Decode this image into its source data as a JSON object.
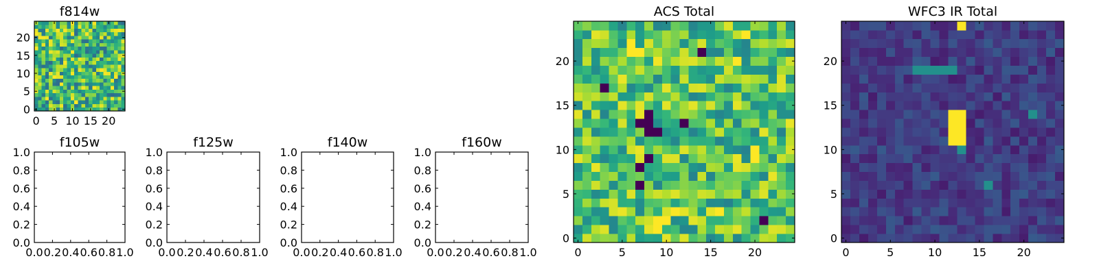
{
  "chart_data": [
    {
      "type": "heatmap",
      "title": "f814w",
      "colormap": "viridis",
      "grid_size": [
        25,
        25
      ],
      "xlim": [
        -0.5,
        24.5
      ],
      "ylim": [
        -0.5,
        24.5
      ],
      "xticks": [
        "0",
        "5",
        "10",
        "15",
        "20"
      ],
      "yticks": [
        "0",
        "5",
        "10",
        "15",
        "20"
      ],
      "value_range": [
        0,
        1
      ],
      "pattern": "noise",
      "noise": [
        0.35,
        1.0
      ],
      "seed": 11,
      "rows": []
    },
    {
      "type": "heatmap",
      "title": "f105w",
      "empty": true,
      "xlim": [
        0,
        1
      ],
      "ylim": [
        0,
        1
      ],
      "xticks": [
        "0.0",
        "0.2",
        "0.4",
        "0.6",
        "0.8",
        "1.0"
      ],
      "yticks": [
        "0.0",
        "0.2",
        "0.4",
        "0.6",
        "0.8",
        "1.0"
      ]
    },
    {
      "type": "heatmap",
      "title": "f125w",
      "empty": true,
      "xlim": [
        0,
        1
      ],
      "ylim": [
        0,
        1
      ],
      "xticks": [
        "0.0",
        "0.2",
        "0.4",
        "0.6",
        "0.8",
        "1.0"
      ],
      "yticks": [
        "0.0",
        "0.2",
        "0.4",
        "0.6",
        "0.8",
        "1.0"
      ]
    },
    {
      "type": "heatmap",
      "title": "f140w",
      "empty": true,
      "xlim": [
        0,
        1
      ],
      "ylim": [
        0,
        1
      ],
      "xticks": [
        "0.0",
        "0.2",
        "0.4",
        "0.6",
        "0.8",
        "1.0"
      ],
      "yticks": [
        "0.0",
        "0.2",
        "0.4",
        "0.6",
        "0.8",
        "1.0"
      ]
    },
    {
      "type": "heatmap",
      "title": "f160w",
      "empty": true,
      "xlim": [
        0,
        1
      ],
      "ylim": [
        0,
        1
      ],
      "xticks": [
        "0.0",
        "0.2",
        "0.4",
        "0.6",
        "0.8",
        "1.0"
      ],
      "yticks": [
        "0.0",
        "0.2",
        "0.4",
        "0.6",
        "0.8",
        "1.0"
      ]
    },
    {
      "type": "heatmap",
      "title": "ACS Total",
      "colormap": "viridis",
      "grid_size": [
        25,
        25
      ],
      "xlim": [
        -0.5,
        24.5
      ],
      "ylim": [
        -0.5,
        24.5
      ],
      "xticks": [
        "0",
        "5",
        "10",
        "15",
        "20"
      ],
      "yticks": [
        "0",
        "5",
        "10",
        "15",
        "20"
      ],
      "value_range": [
        0,
        1
      ],
      "pattern": "noise",
      "noise": [
        0.45,
        0.98
      ],
      "seed": 29,
      "rows": [],
      "low_spots": [
        [
          8,
          9
        ],
        [
          8,
          12
        ],
        [
          7,
          13
        ],
        [
          8,
          13
        ],
        [
          9,
          12
        ],
        [
          12,
          13
        ],
        [
          14,
          21
        ],
        [
          7,
          6
        ],
        [
          7,
          8
        ],
        [
          3,
          17
        ],
        [
          21,
          2
        ],
        [
          8,
          14
        ]
      ],
      "high_spots": [
        [
          6,
          21
        ],
        [
          6,
          22
        ],
        [
          7,
          21
        ],
        [
          20,
          10
        ],
        [
          20,
          9
        ],
        [
          11,
          3
        ],
        [
          9,
          1
        ],
        [
          9,
          2
        ],
        [
          10,
          2
        ],
        [
          19,
          23
        ],
        [
          18,
          20
        ],
        [
          16,
          3
        ]
      ]
    },
    {
      "type": "heatmap",
      "title": "WFC3 IR Total",
      "colormap": "viridis",
      "grid_size": [
        25,
        25
      ],
      "xlim": [
        -0.5,
        24.5
      ],
      "ylim": [
        -0.5,
        24.5
      ],
      "xticks": [
        "0",
        "5",
        "10",
        "15",
        "20"
      ],
      "yticks": [
        "0",
        "5",
        "10",
        "15",
        "20"
      ],
      "value_range": [
        0,
        1
      ],
      "pattern": "noise",
      "noise": [
        0.08,
        0.28
      ],
      "seed": 47,
      "rows": [],
      "high_spots": [
        [
          12,
          11
        ],
        [
          13,
          11
        ],
        [
          12,
          12
        ],
        [
          13,
          12
        ],
        [
          12,
          13
        ],
        [
          13,
          13
        ],
        [
          12,
          14
        ],
        [
          13,
          14
        ],
        [
          13,
          24
        ]
      ],
      "mid_spots": [
        [
          13,
          10
        ],
        [
          21,
          14
        ],
        [
          8,
          19
        ],
        [
          9,
          19
        ],
        [
          10,
          19
        ],
        [
          11,
          19
        ],
        [
          12,
          19
        ],
        [
          16,
          6
        ]
      ]
    }
  ]
}
